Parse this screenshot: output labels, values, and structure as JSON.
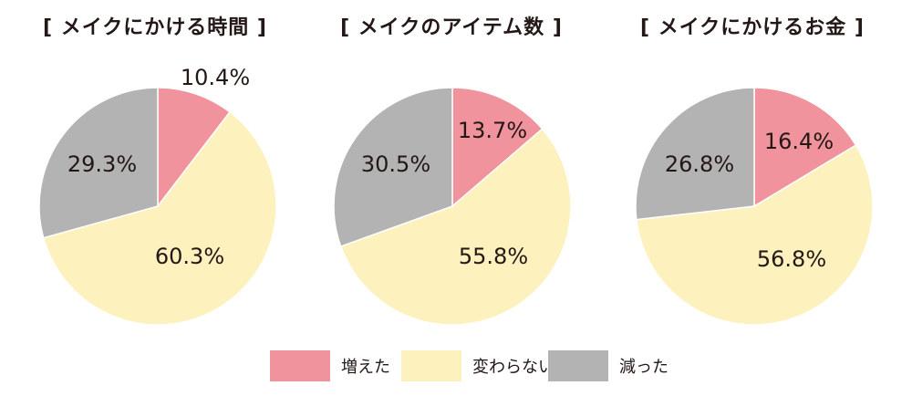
{
  "colors": {
    "increased": "#f0939c",
    "unchanged": "#fdf1bd",
    "decreased": "#b3b3b3",
    "text": "#231815"
  },
  "legend": [
    {
      "key": "increased",
      "label": "増えた"
    },
    {
      "key": "unchanged",
      "label": "変わらない"
    },
    {
      "key": "decreased",
      "label": "減った"
    }
  ],
  "chart_data": [
    {
      "type": "pie",
      "title": "[ メイクにかける時間 ]",
      "categories": [
        "増えた",
        "変わらない",
        "減った"
      ],
      "values": [
        10.4,
        60.3,
        29.3
      ],
      "labels": [
        "10.4%",
        "60.3%",
        "29.3%"
      ]
    },
    {
      "type": "pie",
      "title": "[ メイクのアイテム数 ]",
      "categories": [
        "増えた",
        "変わらない",
        "減った"
      ],
      "values": [
        13.7,
        55.8,
        30.5
      ],
      "labels": [
        "13.7%",
        "55.8%",
        "30.5%"
      ]
    },
    {
      "type": "pie",
      "title": "[ メイクにかけるお金 ]",
      "categories": [
        "増えた",
        "変わらない",
        "減った"
      ],
      "values": [
        16.4,
        56.8,
        26.8
      ],
      "labels": [
        "16.4%",
        "56.8%",
        "26.8%"
      ]
    }
  ]
}
